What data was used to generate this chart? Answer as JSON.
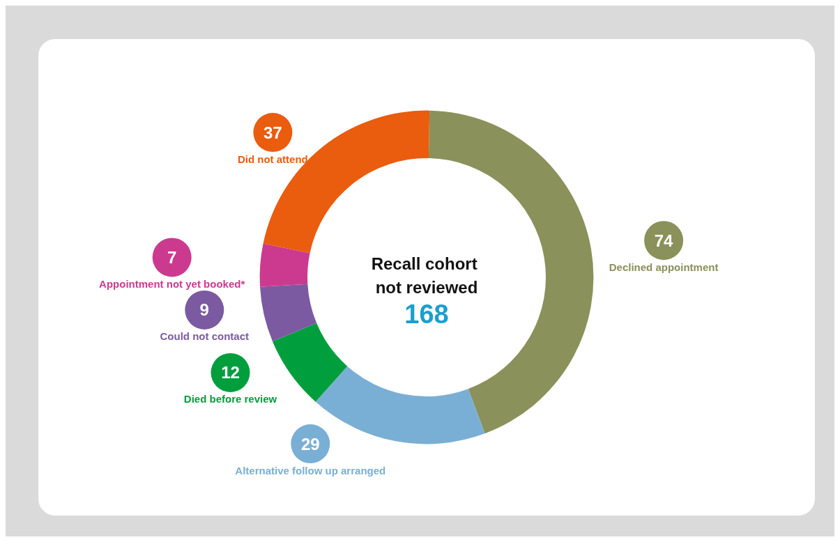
{
  "chart_data": {
    "type": "donut",
    "title": "Recall cohort not reviewed",
    "annotations": [
      "168"
    ],
    "categories": [
      "Declined appointment",
      "Alternative follow up arranged",
      "Died before review",
      "Could not contact",
      "Appointment not yet booked*",
      "Did not attend"
    ],
    "values": [
      74,
      29,
      12,
      9,
      7,
      37
    ],
    "colors": [
      "#8a915a",
      "#7aafd5",
      "#009e3d",
      "#7b5aa1",
      "#cc3a8f",
      "#ea5c0e"
    ],
    "data_labels": true,
    "legend": false
  }
}
